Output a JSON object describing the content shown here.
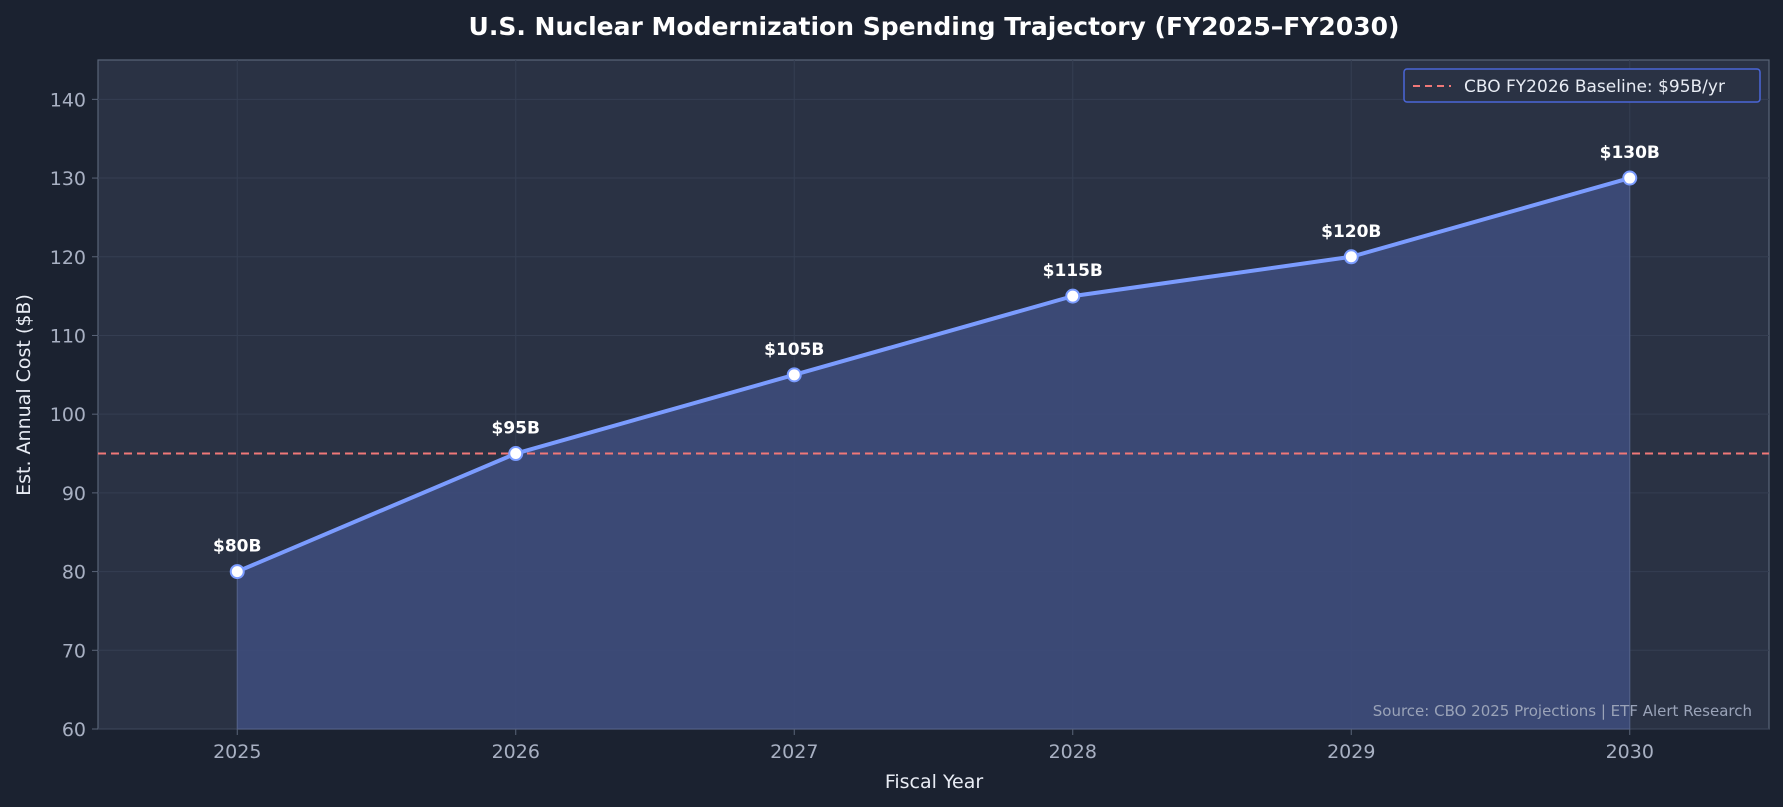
{
  "chart_data": {
    "type": "area",
    "title": "U.S. Nuclear Modernization Spending Trajectory (FY2025–FY2030)",
    "xlabel": "Fiscal Year",
    "ylabel": "Est. Annual Cost ($B)",
    "x": [
      2025,
      2026,
      2027,
      2028,
      2029,
      2030
    ],
    "x_tick_labels": [
      "2025",
      "2026",
      "2027",
      "2028",
      "2029",
      "2030"
    ],
    "xlim": [
      2024.5,
      2030.5
    ],
    "ylim": [
      60,
      145
    ],
    "y_ticks": [
      60,
      70,
      80,
      90,
      100,
      110,
      120,
      130,
      140
    ],
    "y_tick_labels": [
      "60",
      "70",
      "80",
      "90",
      "100",
      "110",
      "120",
      "130",
      "140"
    ],
    "series": [
      {
        "values": [
          80,
          95,
          105,
          115,
          120,
          130
        ],
        "data_labels": [
          "$80B",
          "$95B",
          "$105B",
          "$115B",
          "$120B",
          "$130B"
        ],
        "color": "#7b9cff",
        "fill_color": "#3d4b7a"
      }
    ],
    "reference_lines": [
      {
        "name": "CBO FY2026 Baseline: $95B/yr",
        "y": 95,
        "style": "dashed",
        "color": "#f07878"
      }
    ],
    "grid": true,
    "legend": {
      "position": "top-right",
      "border_color": "#4a66d8",
      "entries": [
        "CBO FY2026 Baseline: $95B/yr"
      ]
    },
    "annotations": [
      {
        "text": "Source: CBO 2025 Projections | ETF Alert Research",
        "position": "bottom-right"
      }
    ]
  },
  "colors": {
    "background": "#1b2230",
    "plot_background": "#2a3244",
    "grid": "#353e52",
    "spine": "#5a6478",
    "line": "#7b9cff",
    "area_fill": "#3d4b7a",
    "marker_fill": "#ffffff",
    "baseline": "#f07878",
    "legend_border": "#4a66d8"
  }
}
